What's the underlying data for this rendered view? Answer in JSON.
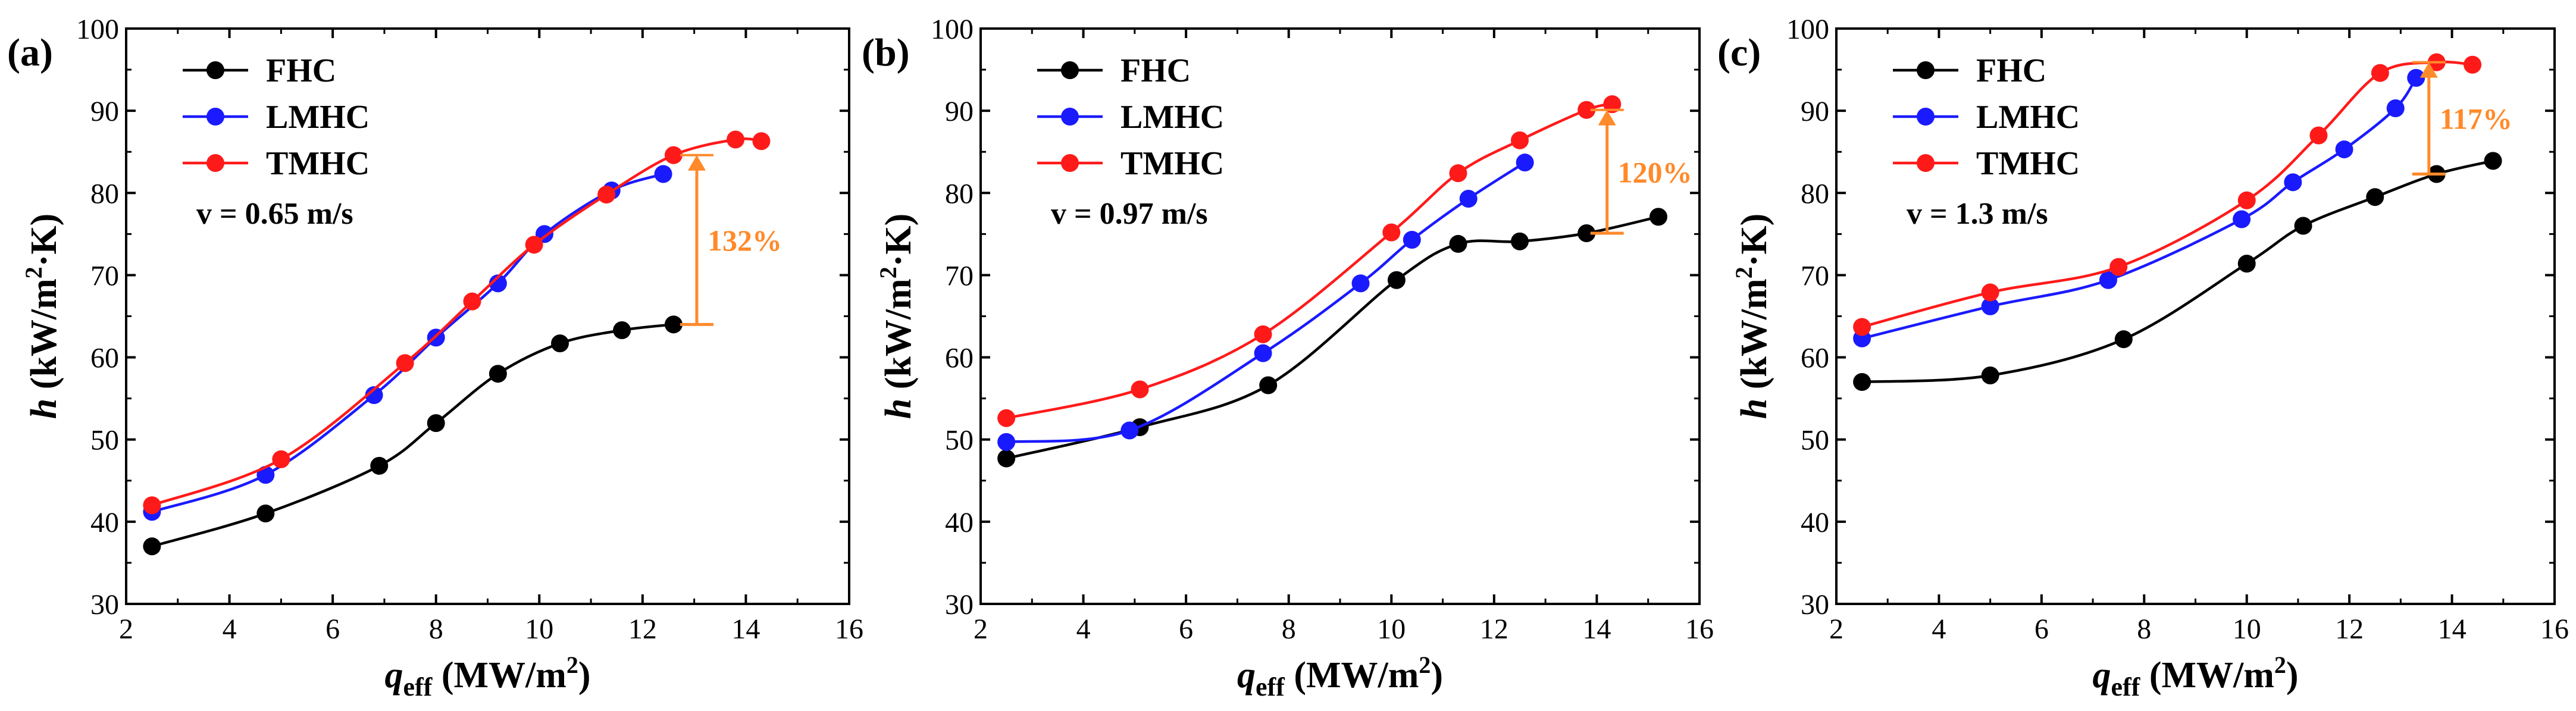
{
  "figure": {
    "colors": {
      "FHC": "#000000",
      "LMHC": "#1a1aff",
      "TMHC": "#ff1a1a",
      "annotation": "#ff8a2a"
    },
    "x_axis_label": {
      "main": "q",
      "sub": "eff",
      "unit": " (MW/m",
      "sup": "2",
      "close": ")"
    },
    "y_axis_label": {
      "main": "h",
      "unit": " (kW/m",
      "sup": "2",
      "rest": "·K)"
    }
  },
  "chart_data": [
    {
      "type": "line",
      "panel_label": "(a)",
      "velocity": "v = 0.65 m/s",
      "xlim": [
        2,
        16
      ],
      "ylim": [
        30,
        100
      ],
      "xticks": [
        "2",
        "4",
        "6",
        "8",
        "10",
        "12",
        "14",
        "16"
      ],
      "yticks": [
        "30",
        "40",
        "50",
        "60",
        "70",
        "80",
        "90",
        "100"
      ],
      "legend": [
        "FHC",
        "LMHC",
        "TMHC"
      ],
      "series": [
        {
          "name": "FHC",
          "x": [
            2.5,
            4.7,
            6.9,
            8.0,
            9.2,
            10.4,
            11.6,
            12.6
          ],
          "y": [
            37.0,
            41.0,
            46.8,
            52.0,
            58.0,
            61.7,
            63.3,
            64.0
          ]
        },
        {
          "name": "LMHC",
          "x": [
            2.5,
            4.7,
            6.8,
            8.0,
            9.2,
            10.1,
            11.4,
            12.4
          ],
          "y": [
            41.2,
            45.7,
            55.4,
            62.4,
            69.0,
            75.0,
            80.3,
            82.3
          ]
        },
        {
          "name": "TMHC",
          "x": [
            2.5,
            5.0,
            7.4,
            8.7,
            9.9,
            11.3,
            12.6,
            13.8,
            14.3
          ],
          "y": [
            42.0,
            47.6,
            59.3,
            66.8,
            73.7,
            79.8,
            84.6,
            86.5,
            86.3
          ]
        }
      ],
      "annotation": {
        "text": "132%",
        "x": 13.05,
        "from": 64.0,
        "to": 84.6
      }
    },
    {
      "type": "line",
      "panel_label": "(b)",
      "velocity": "v = 0.97 m/s",
      "xlim": [
        2,
        16
      ],
      "ylim": [
        30,
        100
      ],
      "xticks": [
        "2",
        "4",
        "6",
        "8",
        "10",
        "12",
        "14",
        "16"
      ],
      "yticks": [
        "30",
        "40",
        "50",
        "60",
        "70",
        "80",
        "90",
        "100"
      ],
      "legend": [
        "FHC",
        "LMHC",
        "TMHC"
      ],
      "series": [
        {
          "name": "FHC",
          "x": [
            2.5,
            5.1,
            7.6,
            10.1,
            11.3,
            12.5,
            13.8,
            15.2
          ],
          "y": [
            47.7,
            51.5,
            56.6,
            69.4,
            73.8,
            74.1,
            75.1,
            77.1
          ]
        },
        {
          "name": "LMHC",
          "x": [
            2.5,
            4.9,
            7.5,
            9.4,
            10.4,
            11.5,
            12.6
          ],
          "y": [
            49.7,
            51.1,
            60.5,
            69.0,
            74.3,
            79.3,
            83.7
          ]
        },
        {
          "name": "TMHC",
          "x": [
            2.5,
            5.1,
            7.5,
            10.0,
            11.3,
            12.5,
            13.8,
            14.3
          ],
          "y": [
            52.6,
            56.1,
            62.8,
            75.2,
            82.4,
            86.4,
            90.1,
            90.8
          ]
        }
      ],
      "annotation": {
        "text": "120%",
        "x": 14.2,
        "from": 75.1,
        "to": 90.1
      }
    },
    {
      "type": "line",
      "panel_label": "(c)",
      "velocity": "v = 1.3 m/s",
      "xlim": [
        2,
        16
      ],
      "ylim": [
        30,
        100
      ],
      "xticks": [
        "2",
        "4",
        "6",
        "8",
        "10",
        "12",
        "14",
        "16"
      ],
      "yticks": [
        "30",
        "40",
        "50",
        "60",
        "70",
        "80",
        "90",
        "100"
      ],
      "legend": [
        "FHC",
        "LMHC",
        "TMHC"
      ],
      "series": [
        {
          "name": "FHC",
          "x": [
            2.5,
            5.0,
            7.6,
            10.0,
            11.1,
            12.5,
            13.7,
            14.8
          ],
          "y": [
            57.0,
            57.8,
            62.2,
            71.4,
            76.0,
            79.5,
            82.3,
            83.9
          ]
        },
        {
          "name": "LMHC",
          "x": [
            2.5,
            5.0,
            7.3,
            9.9,
            10.9,
            11.9,
            12.9,
            13.3
          ],
          "y": [
            62.3,
            66.2,
            69.4,
            76.8,
            81.3,
            85.3,
            90.3,
            94.0
          ]
        },
        {
          "name": "TMHC",
          "x": [
            2.5,
            5.0,
            7.5,
            10.0,
            11.4,
            12.6,
            13.7,
            14.4
          ],
          "y": [
            63.7,
            67.9,
            71.0,
            79.1,
            87.0,
            94.6,
            95.9,
            95.6
          ]
        }
      ],
      "annotation": {
        "text": "117%",
        "x": 13.55,
        "from": 82.3,
        "to": 95.9
      }
    }
  ]
}
